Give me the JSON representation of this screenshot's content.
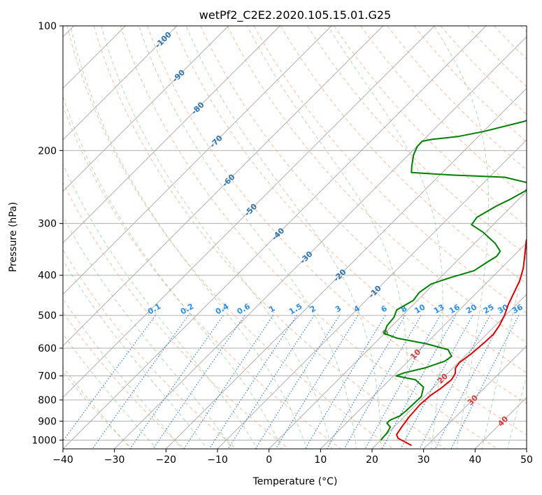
{
  "chart_data": {
    "type": "line",
    "title": "wetPf2_C2E2.2020.105.15.01.G25",
    "xlabel": "Temperature (°C)",
    "ylabel": "Pressure (hPa)",
    "xlim": [
      -40,
      50
    ],
    "ylim": [
      1050,
      100
    ],
    "y_scale": "log",
    "x_ticks": [
      "−40",
      "−30",
      "−20",
      "−10",
      "0",
      "10",
      "20",
      "30",
      "40",
      "50"
    ],
    "y_ticks": [
      "100",
      "200",
      "300",
      "400",
      "500",
      "600",
      "700",
      "800",
      "900",
      "1000"
    ],
    "y_tick_values": [
      100,
      200,
      300,
      400,
      500,
      600,
      700,
      800,
      900,
      1000
    ],
    "grid": true,
    "skew_isotherm_labels": [
      "-100",
      "-90",
      "-80",
      "-70",
      "-60",
      "-50",
      "-40",
      "-30",
      "-20",
      "-10",
      "0",
      "10",
      "20",
      "30",
      "40"
    ],
    "mixing_ratio_labels": [
      "0.1",
      "0.2",
      "0.4",
      "0.6",
      "1",
      "1.5",
      "2",
      "3",
      "4",
      "6",
      "8",
      "10",
      "13",
      "16",
      "20",
      "25",
      "30",
      "36"
    ],
    "series": [
      {
        "role": "temperature",
        "color": "#e00000",
        "points": [
          [
            27.0,
            1030
          ],
          [
            25.0,
            1010
          ],
          [
            23.0,
            990
          ],
          [
            22.0,
            970
          ],
          [
            21.5,
            930
          ],
          [
            21.0,
            880
          ],
          [
            20.7,
            820
          ],
          [
            21.0,
            780
          ],
          [
            21.6,
            750
          ],
          [
            22.0,
            715
          ],
          [
            21.5,
            690
          ],
          [
            20.5,
            670
          ],
          [
            20.2,
            650
          ],
          [
            20.8,
            620
          ],
          [
            21.2,
            580
          ],
          [
            21.3,
            555
          ],
          [
            20.8,
            530
          ],
          [
            19.8,
            500
          ],
          [
            18.4,
            470
          ],
          [
            17.2,
            440
          ],
          [
            16.0,
            412
          ],
          [
            14.3,
            385
          ],
          [
            11.8,
            355
          ],
          [
            9.5,
            330
          ],
          [
            8.3,
            310
          ],
          [
            7.3,
            290
          ],
          [
            6.0,
            270
          ],
          [
            5.8,
            255
          ],
          [
            6.3,
            245
          ],
          [
            7.5,
            237
          ],
          [
            9.3,
            225
          ],
          [
            10.5,
            215
          ],
          [
            10.8,
            208
          ],
          [
            9.6,
            198
          ],
          [
            7.8,
            188
          ],
          [
            5.8,
            178
          ],
          [
            4.3,
            170
          ],
          [
            3.0,
            160
          ],
          [
            2.5,
            150
          ],
          [
            2.7,
            140
          ],
          [
            3.5,
            130
          ],
          [
            3.6,
            120
          ],
          [
            3.2,
            110
          ],
          [
            3.6,
            105
          ],
          [
            4.2,
            100
          ]
        ]
      },
      {
        "role": "dewpoint",
        "color": "#008000",
        "points": [
          [
            20.0,
            1000
          ],
          [
            19.8,
            960
          ],
          [
            19.3,
            930
          ],
          [
            17.9,
            910
          ],
          [
            17.9,
            895
          ],
          [
            19.0,
            875
          ],
          [
            19.2,
            850
          ],
          [
            19.3,
            820
          ],
          [
            19.4,
            785
          ],
          [
            18.0,
            745
          ],
          [
            15.0,
            715
          ],
          [
            10.5,
            700
          ],
          [
            11.5,
            688
          ],
          [
            14.5,
            670
          ],
          [
            17.1,
            645
          ],
          [
            17.5,
            628
          ],
          [
            15.5,
            605
          ],
          [
            10.0,
            585
          ],
          [
            3.5,
            568
          ],
          [
            0.0,
            553
          ],
          [
            -1.0,
            530
          ],
          [
            -1.3,
            505
          ],
          [
            -2.2,
            485
          ],
          [
            -0.8,
            460
          ],
          [
            -1.2,
            440
          ],
          [
            -0.5,
            420
          ],
          [
            2.0,
            405
          ],
          [
            5.2,
            390
          ],
          [
            6.2,
            370
          ],
          [
            6.8,
            360
          ],
          [
            6.5,
            350
          ],
          [
            4.0,
            335
          ],
          [
            -0.5,
            315
          ],
          [
            -4.2,
            302
          ],
          [
            -4.6,
            290
          ],
          [
            -3.0,
            272
          ],
          [
            -1.6,
            262
          ],
          [
            -0.3,
            250
          ],
          [
            -0.8,
            240
          ],
          [
            -7.0,
            232
          ],
          [
            -18.0,
            229
          ],
          [
            -26.0,
            226
          ],
          [
            -27.2,
            218
          ],
          [
            -29.0,
            205
          ],
          [
            -29.9,
            196
          ],
          [
            -30.0,
            190
          ],
          [
            -28.5,
            188
          ],
          [
            -24.0,
            185
          ],
          [
            -20.0,
            180
          ],
          [
            -14.0,
            170
          ],
          [
            -11.3,
            160
          ],
          [
            -10.5,
            150
          ],
          [
            -10.4,
            140
          ],
          [
            -9.5,
            130
          ],
          [
            -8.5,
            120
          ],
          [
            -6.5,
            110
          ],
          [
            -4.5,
            100
          ]
        ]
      }
    ]
  }
}
